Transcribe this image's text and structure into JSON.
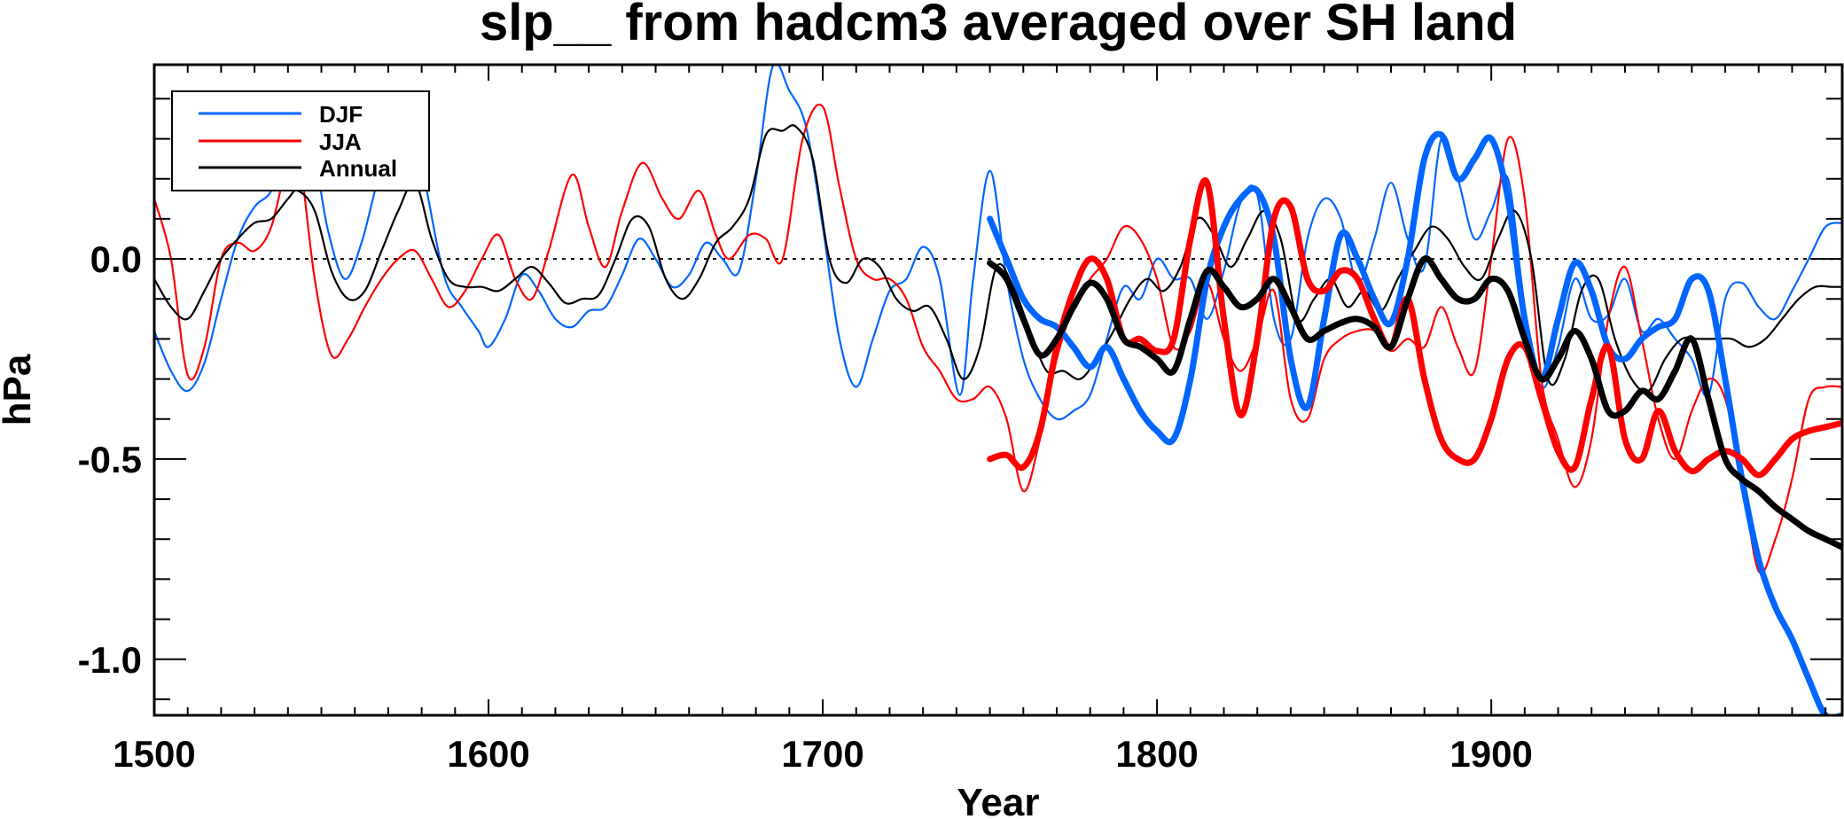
{
  "chart_data": {
    "type": "line",
    "title": "slp__ from hadcm3 averaged over SH land",
    "xlabel": "Year",
    "ylabel": "hPa",
    "xlim": [
      1500,
      2005
    ],
    "ylim": [
      -1.14,
      0.485
    ],
    "x_major_ticks": [
      1500,
      1600,
      1700,
      1800,
      1900
    ],
    "x_tick_labels": [
      "1500",
      "1600",
      "1700",
      "1800",
      "1900"
    ],
    "x_minor_step": 10,
    "y_major_ticks": [
      0.0,
      -0.5,
      -1.0
    ],
    "y_tick_labels": [
      "0.0",
      "-0.5",
      "-1.0"
    ],
    "y_minor_step": 0.1,
    "reference_line": {
      "y": 0.0,
      "style": "dotted"
    },
    "grid": false,
    "legend": {
      "position": "top-left",
      "entries": [
        {
          "label": "DJF",
          "color": "#0066ff"
        },
        {
          "label": "JJA",
          "color": "#ff0000"
        },
        {
          "label": "Annual",
          "color": "#000000"
        }
      ]
    },
    "series": [
      {
        "name": "DJF",
        "color": "#0066ff",
        "weight": "thin",
        "x": [
          1500,
          1505,
          1510,
          1515,
          1520,
          1525,
          1530,
          1535,
          1540,
          1543,
          1548,
          1552,
          1557,
          1562,
          1567,
          1572,
          1577,
          1582,
          1587,
          1592,
          1597,
          1600,
          1605,
          1610,
          1615,
          1620,
          1625,
          1630,
          1635,
          1640,
          1645,
          1650,
          1655,
          1660,
          1665,
          1670,
          1675,
          1680,
          1685,
          1690,
          1695,
          1700,
          1705,
          1710,
          1715,
          1720,
          1725,
          1730,
          1735,
          1741,
          1745,
          1750,
          1755,
          1760,
          1765,
          1770,
          1775,
          1780,
          1785,
          1790,
          1795,
          1800,
          1805,
          1810,
          1815,
          1820,
          1825,
          1830,
          1835,
          1840,
          1845,
          1850,
          1855,
          1860,
          1865,
          1870,
          1875,
          1880,
          1885,
          1890,
          1895,
          1900,
          1905,
          1910,
          1915,
          1920,
          1925,
          1930,
          1935,
          1940,
          1945,
          1950,
          1955,
          1960,
          1965,
          1970,
          1975,
          1980,
          1985,
          1990,
          1995,
          2000,
          2005
        ],
        "y": [
          -0.18,
          -0.28,
          -0.33,
          -0.26,
          -0.1,
          0.05,
          0.13,
          0.17,
          0.28,
          0.35,
          0.25,
          0.07,
          -0.05,
          0.04,
          0.2,
          0.32,
          0.38,
          0.15,
          -0.05,
          -0.12,
          -0.18,
          -0.22,
          -0.15,
          -0.04,
          -0.08,
          -0.15,
          -0.17,
          -0.13,
          -0.12,
          -0.04,
          0.05,
          0.0,
          -0.07,
          -0.04,
          0.04,
          0.0,
          -0.03,
          0.2,
          0.48,
          0.42,
          0.33,
          0.08,
          -0.2,
          -0.32,
          -0.2,
          -0.08,
          -0.05,
          0.03,
          -0.05,
          -0.34,
          -0.05,
          0.22,
          -0.05,
          -0.25,
          -0.35,
          -0.4,
          -0.38,
          -0.34,
          -0.2,
          -0.07,
          -0.1,
          0.0,
          -0.05,
          -0.05,
          -0.15,
          -0.03,
          0.14,
          0.16,
          -0.15,
          -0.2,
          0.05,
          0.15,
          0.1,
          -0.06,
          0.05,
          0.19,
          0.05,
          -0.02,
          0.3,
          0.2,
          0.05,
          0.12,
          0.2,
          -0.12,
          -0.32,
          -0.22,
          -0.05,
          -0.15,
          -0.14,
          -0.05,
          -0.18,
          -0.15,
          -0.2,
          -0.25,
          -0.34,
          -0.1,
          -0.06,
          -0.12,
          -0.15,
          -0.08,
          0.0,
          0.08,
          0.09
        ]
      },
      {
        "name": "JJA",
        "color": "#ff0000",
        "weight": "thin",
        "x": [
          1500,
          1505,
          1510,
          1515,
          1520,
          1525,
          1530,
          1535,
          1540,
          1543,
          1548,
          1553,
          1558,
          1563,
          1568,
          1573,
          1578,
          1583,
          1588,
          1593,
          1598,
          1603,
          1608,
          1613,
          1618,
          1625,
          1630,
          1635,
          1640,
          1646,
          1652,
          1657,
          1663,
          1668,
          1672,
          1678,
          1683,
          1688,
          1694,
          1700,
          1705,
          1710,
          1715,
          1720,
          1725,
          1730,
          1735,
          1740,
          1745,
          1750,
          1755,
          1760,
          1765,
          1770,
          1775,
          1780,
          1785,
          1790,
          1795,
          1800,
          1805,
          1810,
          1815,
          1820,
          1825,
          1830,
          1835,
          1840,
          1845,
          1850,
          1855,
          1860,
          1865,
          1870,
          1875,
          1880,
          1885,
          1890,
          1895,
          1900,
          1905,
          1910,
          1915,
          1920,
          1925,
          1930,
          1935,
          1940,
          1945,
          1950,
          1955,
          1960,
          1965,
          1970,
          1975,
          1980,
          1985,
          1990,
          1995,
          2000,
          2005
        ],
        "y": [
          0.15,
          0.0,
          -0.29,
          -0.22,
          0.0,
          0.04,
          0.02,
          0.08,
          0.25,
          0.28,
          -0.05,
          -0.24,
          -0.2,
          -0.12,
          -0.05,
          0.0,
          0.02,
          -0.05,
          -0.12,
          -0.08,
          0.0,
          0.06,
          -0.05,
          -0.1,
          0.02,
          0.21,
          0.08,
          -0.02,
          0.12,
          0.24,
          0.15,
          0.1,
          0.17,
          0.06,
          0.0,
          0.06,
          0.05,
          0.0,
          0.3,
          0.38,
          0.18,
          0.0,
          -0.05,
          -0.05,
          -0.1,
          -0.22,
          -0.28,
          -0.35,
          -0.35,
          -0.32,
          -0.4,
          -0.58,
          -0.45,
          -0.25,
          -0.12,
          -0.05,
          0.0,
          0.08,
          0.05,
          -0.05,
          -0.22,
          -0.18,
          -0.06,
          -0.2,
          -0.28,
          -0.2,
          -0.08,
          -0.35,
          -0.4,
          -0.25,
          -0.2,
          -0.18,
          -0.18,
          -0.23,
          -0.2,
          -0.22,
          -0.12,
          -0.22,
          -0.28,
          0.0,
          0.3,
          0.15,
          -0.3,
          -0.45,
          -0.57,
          -0.45,
          -0.15,
          -0.02,
          -0.2,
          -0.4,
          -0.5,
          -0.38,
          -0.3,
          -0.35,
          -0.55,
          -0.78,
          -0.7,
          -0.55,
          -0.35,
          -0.32,
          -0.32
        ]
      },
      {
        "name": "Annual",
        "color": "#000000",
        "weight": "thin",
        "x": [
          1500,
          1505,
          1510,
          1515,
          1520,
          1525,
          1530,
          1535,
          1540,
          1543,
          1548,
          1553,
          1558,
          1563,
          1568,
          1573,
          1578,
          1583,
          1588,
          1593,
          1598,
          1603,
          1608,
          1613,
          1618,
          1623,
          1628,
          1633,
          1638,
          1643,
          1648,
          1653,
          1658,
          1663,
          1668,
          1673,
          1678,
          1683,
          1688,
          1692,
          1697,
          1702,
          1707,
          1712,
          1717,
          1722,
          1727,
          1732,
          1737,
          1742,
          1747,
          1752,
          1757,
          1762,
          1767,
          1772,
          1777,
          1782,
          1787,
          1792,
          1797,
          1802,
          1807,
          1812,
          1817,
          1822,
          1827,
          1832,
          1837,
          1842,
          1847,
          1852,
          1857,
          1862,
          1867,
          1872,
          1877,
          1882,
          1887,
          1892,
          1897,
          1902,
          1907,
          1912,
          1917,
          1922,
          1927,
          1932,
          1937,
          1942,
          1947,
          1952,
          1957,
          1962,
          1967,
          1972,
          1977,
          1982,
          1987,
          1992,
          1997,
          2002,
          2005
        ],
        "y": [
          -0.05,
          -0.12,
          -0.15,
          -0.08,
          0.0,
          0.05,
          0.09,
          0.1,
          0.15,
          0.17,
          0.12,
          -0.03,
          -0.1,
          -0.08,
          0.02,
          0.12,
          0.19,
          0.05,
          -0.05,
          -0.07,
          -0.07,
          -0.08,
          -0.05,
          -0.02,
          -0.06,
          -0.11,
          -0.1,
          -0.09,
          0.0,
          0.1,
          0.08,
          -0.05,
          -0.1,
          -0.05,
          0.04,
          0.08,
          0.15,
          0.31,
          0.32,
          0.33,
          0.25,
          0.0,
          -0.06,
          0.0,
          -0.02,
          -0.1,
          -0.13,
          -0.12,
          -0.2,
          -0.3,
          -0.22,
          -0.02,
          -0.07,
          -0.18,
          -0.28,
          -0.28,
          -0.3,
          -0.25,
          -0.18,
          -0.1,
          -0.05,
          -0.08,
          -0.02,
          0.1,
          0.06,
          -0.02,
          0.05,
          0.12,
          0.05,
          -0.15,
          -0.1,
          -0.05,
          -0.12,
          -0.08,
          -0.13,
          -0.05,
          0.02,
          0.08,
          0.05,
          -0.02,
          -0.05,
          0.05,
          0.12,
          0.0,
          -0.3,
          -0.25,
          -0.08,
          -0.05,
          -0.2,
          -0.3,
          -0.33,
          -0.25,
          -0.2,
          -0.2,
          -0.2,
          -0.2,
          -0.22,
          -0.2,
          -0.15,
          -0.1,
          -0.07,
          -0.07,
          -0.07
        ]
      },
      {
        "name": "DJF (smoothed)",
        "color": "#0066ff",
        "weight": "thick",
        "x": [
          1750,
          1755,
          1760,
          1765,
          1770,
          1775,
          1780,
          1785,
          1790,
          1795,
          1800,
          1805,
          1810,
          1815,
          1820,
          1825,
          1830,
          1835,
          1840,
          1845,
          1850,
          1855,
          1860,
          1865,
          1870,
          1875,
          1880,
          1885,
          1890,
          1895,
          1900,
          1905,
          1910,
          1915,
          1920,
          1925,
          1930,
          1935,
          1940,
          1945,
          1950,
          1955,
          1960,
          1965,
          1970,
          1975,
          1980,
          1985,
          1990,
          1995,
          2000,
          2005
        ],
        "y": [
          0.1,
          0.0,
          -0.1,
          -0.15,
          -0.17,
          -0.22,
          -0.27,
          -0.22,
          -0.3,
          -0.38,
          -0.43,
          -0.45,
          -0.3,
          -0.05,
          0.08,
          0.15,
          0.17,
          0.05,
          -0.25,
          -0.37,
          -0.15,
          0.06,
          0.0,
          -0.1,
          -0.16,
          0.0,
          0.25,
          0.31,
          0.2,
          0.25,
          0.3,
          0.15,
          -0.15,
          -0.3,
          -0.15,
          -0.01,
          -0.08,
          -0.22,
          -0.25,
          -0.2,
          -0.17,
          -0.15,
          -0.05,
          -0.08,
          -0.3,
          -0.55,
          -0.75,
          -0.87,
          -0.95,
          -1.05,
          -1.14,
          -1.14
        ]
      },
      {
        "name": "JJA (smoothed)",
        "color": "#ff0000",
        "weight": "thick",
        "x": [
          1750,
          1755,
          1760,
          1765,
          1770,
          1775,
          1780,
          1785,
          1790,
          1795,
          1800,
          1805,
          1810,
          1815,
          1820,
          1825,
          1830,
          1835,
          1840,
          1845,
          1850,
          1855,
          1860,
          1865,
          1870,
          1875,
          1880,
          1885,
          1890,
          1895,
          1900,
          1905,
          1910,
          1915,
          1920,
          1925,
          1930,
          1935,
          1940,
          1945,
          1950,
          1955,
          1960,
          1965,
          1970,
          1975,
          1980,
          1985,
          1990,
          1995,
          2000,
          2005
        ],
        "y": [
          -0.5,
          -0.49,
          -0.52,
          -0.43,
          -0.22,
          -0.08,
          0.0,
          -0.05,
          -0.2,
          -0.2,
          -0.23,
          -0.2,
          0.05,
          0.19,
          -0.15,
          -0.39,
          -0.2,
          0.1,
          0.13,
          -0.05,
          -0.08,
          -0.03,
          -0.05,
          -0.15,
          -0.22,
          -0.1,
          -0.3,
          -0.45,
          -0.5,
          -0.5,
          -0.4,
          -0.25,
          -0.22,
          -0.35,
          -0.48,
          -0.52,
          -0.35,
          -0.22,
          -0.45,
          -0.5,
          -0.38,
          -0.48,
          -0.53,
          -0.5,
          -0.48,
          -0.5,
          -0.54,
          -0.5,
          -0.45,
          -0.43,
          -0.42,
          -0.41
        ]
      },
      {
        "name": "Annual (smoothed)",
        "color": "#000000",
        "weight": "thick",
        "x": [
          1750,
          1755,
          1760,
          1765,
          1770,
          1775,
          1780,
          1785,
          1790,
          1795,
          1800,
          1805,
          1810,
          1815,
          1820,
          1825,
          1830,
          1835,
          1840,
          1845,
          1850,
          1855,
          1860,
          1865,
          1870,
          1875,
          1880,
          1885,
          1890,
          1895,
          1900,
          1905,
          1910,
          1915,
          1920,
          1925,
          1930,
          1935,
          1940,
          1945,
          1950,
          1955,
          1960,
          1965,
          1970,
          1975,
          1980,
          1985,
          1990,
          1995,
          2000,
          2005
        ],
        "y": [
          -0.01,
          -0.05,
          -0.15,
          -0.24,
          -0.2,
          -0.12,
          -0.06,
          -0.1,
          -0.2,
          -0.22,
          -0.25,
          -0.28,
          -0.15,
          -0.03,
          -0.07,
          -0.12,
          -0.1,
          -0.05,
          -0.12,
          -0.2,
          -0.18,
          -0.16,
          -0.15,
          -0.17,
          -0.22,
          -0.1,
          0.0,
          -0.05,
          -0.1,
          -0.1,
          -0.05,
          -0.08,
          -0.2,
          -0.3,
          -0.25,
          -0.18,
          -0.25,
          -0.38,
          -0.38,
          -0.33,
          -0.35,
          -0.28,
          -0.2,
          -0.35,
          -0.5,
          -0.55,
          -0.58,
          -0.62,
          -0.65,
          -0.68,
          -0.7,
          -0.72
        ]
      }
    ]
  }
}
